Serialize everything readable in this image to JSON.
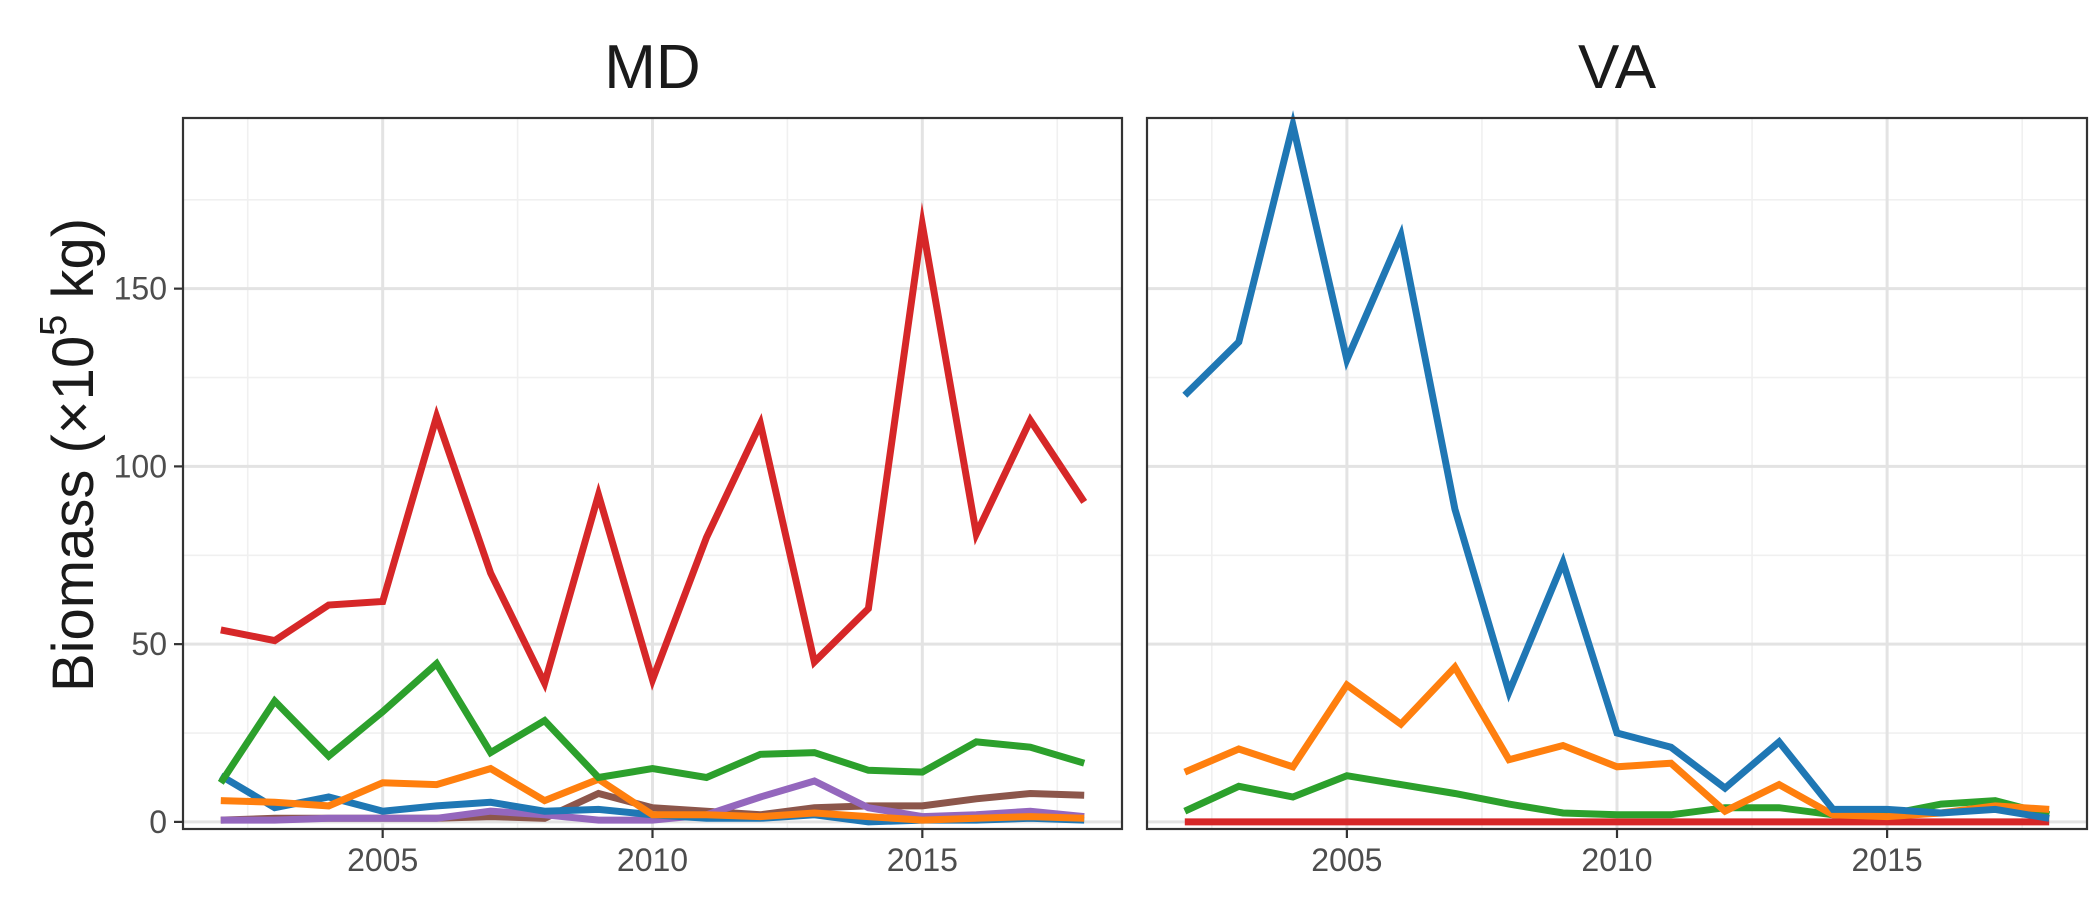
{
  "chart_data": {
    "type": "line",
    "ylabel_main": "Biomass (×10",
    "ylabel_sup": "5",
    "ylabel_unit": " kg)",
    "xlim": [
      2001.3,
      2018.7
    ],
    "ylim": [
      -2,
      198
    ],
    "x_ticks": [
      2005,
      2010,
      2015
    ],
    "y_ticks": [
      0,
      50,
      100,
      150
    ],
    "grid": true,
    "legend": "none",
    "colors": {
      "blue": "#1f77b4",
      "orange": "#ff7f0e",
      "green": "#2ca02c",
      "red": "#d62728",
      "purple": "#9467bd",
      "brown": "#8c564b"
    },
    "years": [
      2002,
      2003,
      2004,
      2005,
      2006,
      2007,
      2008,
      2009,
      2010,
      2011,
      2012,
      2013,
      2014,
      2015,
      2016,
      2017,
      2018
    ],
    "panels": [
      {
        "label": "MD",
        "series": [
          {
            "color": "brown",
            "values": [
              0.5,
              1,
              1,
              1,
              1,
              1.5,
              1,
              8,
              4,
              3,
              2,
              4,
              4.5,
              4.5,
              6.5,
              8,
              7.5
            ]
          },
          {
            "color": "purple",
            "values": [
              0.5,
              0.5,
              1,
              1,
              1,
              3,
              2,
              0.5,
              0.5,
              2,
              7,
              11.5,
              4,
              1.5,
              2,
              3,
              1.5
            ]
          },
          {
            "color": "blue",
            "values": [
              13,
              4,
              7,
              3,
              4.5,
              5.5,
              3,
              3.5,
              2,
              1,
              1,
              2,
              0,
              0.5,
              0.5,
              1,
              0.5
            ]
          },
          {
            "color": "orange",
            "values": [
              6,
              5.5,
              4.5,
              11,
              10.5,
              15,
              6,
              12,
              2,
              2,
              1.5,
              2.5,
              1.5,
              0.5,
              1,
              1.5,
              1
            ]
          },
          {
            "color": "green",
            "values": [
              11,
              34,
              18.5,
              31,
              44.5,
              19.5,
              28.5,
              12.5,
              15,
              12.5,
              19,
              19.5,
              14.5,
              14,
              22.5,
              21,
              16.5
            ]
          },
          {
            "color": "red",
            "values": [
              54,
              51,
              61,
              62,
              114,
              70,
              39,
              92,
              40,
              80,
              112,
              45,
              60,
              168,
              81,
              113,
              90
            ]
          }
        ]
      },
      {
        "label": "VA",
        "series": [
          {
            "color": "red",
            "values": [
              0,
              0,
              0,
              0,
              0,
              0,
              0,
              0,
              0,
              0,
              0,
              0,
              0,
              0,
              0,
              0,
              0
            ]
          },
          {
            "color": "green",
            "values": [
              3,
              10,
              7,
              13,
              10.5,
              8,
              5,
              2.5,
              2,
              2,
              4,
              4,
              2,
              2,
              5,
              6,
              2
            ]
          },
          {
            "color": "orange",
            "values": [
              14,
              20.5,
              15.5,
              38.5,
              27.5,
              43.5,
              17.5,
              21.5,
              15.5,
              16.5,
              3,
              10.5,
              2,
              1.5,
              2.5,
              4.5,
              3.5
            ]
          },
          {
            "color": "blue",
            "values": [
              120,
              135,
              196,
              130,
              165,
              88,
              36.5,
              73,
              25,
              21,
              9.5,
              22.5,
              3.5,
              3.5,
              2.5,
              3.5,
              1
            ]
          }
        ]
      }
    ]
  }
}
